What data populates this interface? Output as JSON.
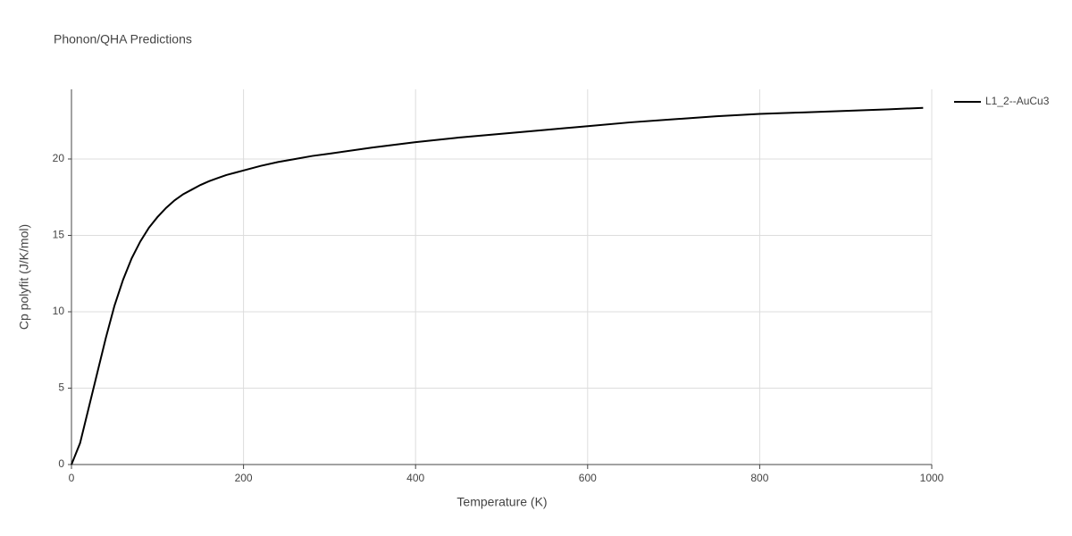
{
  "chart_data": {
    "type": "line",
    "title": "Phonon/QHA Predictions",
    "x_label": "Temperature (K)",
    "y_label": "Cp polyfit (J/K/mol)",
    "x": [
      0,
      10,
      20,
      30,
      40,
      50,
      60,
      70,
      80,
      90,
      100,
      110,
      120,
      130,
      140,
      150,
      160,
      170,
      180,
      190,
      200,
      220,
      240,
      260,
      280,
      300,
      350,
      400,
      450,
      500,
      550,
      600,
      650,
      700,
      750,
      800,
      850,
      900,
      950,
      990
    ],
    "series": [
      {
        "name": "L1_2--AuCu3",
        "color": "#000000",
        "values": [
          0,
          1.4,
          3.7,
          6.0,
          8.3,
          10.4,
          12.1,
          13.5,
          14.6,
          15.5,
          16.2,
          16.8,
          17.3,
          17.7,
          18.0,
          18.3,
          18.55,
          18.75,
          18.95,
          19.1,
          19.25,
          19.55,
          19.8,
          20.0,
          20.2,
          20.35,
          20.75,
          21.1,
          21.4,
          21.65,
          21.9,
          22.15,
          22.4,
          22.6,
          22.8,
          22.95,
          23.05,
          23.15,
          23.25,
          23.35
        ]
      }
    ],
    "xlim": [
      0,
      1000
    ],
    "ylim": [
      0,
      24.56
    ],
    "xticks": [
      0,
      200,
      400,
      600,
      800,
      1000
    ],
    "yticks": [
      0,
      5,
      10,
      15,
      20
    ],
    "grid": true,
    "legend": "outside-right"
  }
}
